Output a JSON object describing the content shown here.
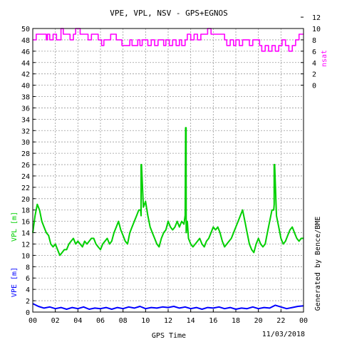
{
  "chart_data": {
    "type": "line",
    "title": "VPE, VPL, NSV - GPS+EGNOS",
    "xlabel": "GPS Time",
    "date": "11/03/2018",
    "side_credit": "Generated by Bence/BME",
    "grid": true,
    "left_axis": {
      "range": [
        0,
        50
      ],
      "ticks": [
        "0",
        "2",
        "4",
        "6",
        "8",
        "10",
        "12",
        "14",
        "16",
        "18",
        "20",
        "22",
        "24",
        "26",
        "28",
        "30",
        "32",
        "34",
        "36",
        "38",
        "40",
        "42",
        "44",
        "46",
        "48",
        "50"
      ],
      "labels": [
        {
          "text": "VPL [m]",
          "color": "#00d000"
        },
        {
          "text": "VPE [m]",
          "color": "#0000ff"
        }
      ]
    },
    "right_axis": {
      "label": "nsat",
      "label_color": "#ff00ff",
      "ticks": [
        "0",
        "2",
        "4",
        "6",
        "8",
        "10",
        "12"
      ]
    },
    "x_axis": {
      "range_hours": [
        0,
        24
      ],
      "ticks": [
        "00",
        "02",
        "04",
        "06",
        "08",
        "10",
        "12",
        "14",
        "16",
        "18",
        "20",
        "22",
        "00"
      ]
    },
    "series": [
      {
        "key": "nsat",
        "color": "#ff00ff",
        "axis": "right",
        "step": true,
        "points": [
          [
            0,
            8
          ],
          [
            0.3,
            9
          ],
          [
            1.0,
            9
          ],
          [
            1.2,
            8
          ],
          [
            1.3,
            9
          ],
          [
            1.5,
            8
          ],
          [
            1.8,
            9
          ],
          [
            2.1,
            8
          ],
          [
            2.5,
            10
          ],
          [
            2.7,
            9
          ],
          [
            3.0,
            9
          ],
          [
            3.3,
            8
          ],
          [
            3.6,
            9
          ],
          [
            3.8,
            10
          ],
          [
            4.1,
            10
          ],
          [
            4.2,
            9
          ],
          [
            4.6,
            9
          ],
          [
            4.9,
            8
          ],
          [
            5.2,
            9
          ],
          [
            5.6,
            9
          ],
          [
            5.8,
            8
          ],
          [
            6.1,
            7
          ],
          [
            6.3,
            8
          ],
          [
            6.6,
            8
          ],
          [
            6.9,
            9
          ],
          [
            7.2,
            9
          ],
          [
            7.4,
            8
          ],
          [
            7.7,
            8
          ],
          [
            7.9,
            7
          ],
          [
            8.3,
            7
          ],
          [
            8.6,
            8
          ],
          [
            8.8,
            7
          ],
          [
            9.1,
            7
          ],
          [
            9.3,
            8
          ],
          [
            9.5,
            7
          ],
          [
            9.7,
            8
          ],
          [
            9.9,
            8
          ],
          [
            10.2,
            7
          ],
          [
            10.5,
            8
          ],
          [
            10.8,
            7
          ],
          [
            11.1,
            8
          ],
          [
            11.4,
            8
          ],
          [
            11.6,
            7
          ],
          [
            11.8,
            8
          ],
          [
            12.1,
            7
          ],
          [
            12.4,
            8
          ],
          [
            12.7,
            7
          ],
          [
            13.0,
            8
          ],
          [
            13.2,
            7
          ],
          [
            13.5,
            8
          ],
          [
            13.7,
            9
          ],
          [
            14.0,
            8
          ],
          [
            14.3,
            9
          ],
          [
            14.6,
            8
          ],
          [
            14.9,
            9
          ],
          [
            15.2,
            9
          ],
          [
            15.5,
            10
          ],
          [
            15.8,
            9
          ],
          [
            16.1,
            9
          ],
          [
            16.4,
            9
          ],
          [
            16.7,
            9
          ],
          [
            17.0,
            8
          ],
          [
            17.2,
            7
          ],
          [
            17.5,
            8
          ],
          [
            17.8,
            7
          ],
          [
            18.0,
            8
          ],
          [
            18.3,
            7
          ],
          [
            18.6,
            8
          ],
          [
            18.9,
            8
          ],
          [
            19.2,
            7
          ],
          [
            19.5,
            8
          ],
          [
            19.8,
            8
          ],
          [
            20.1,
            7
          ],
          [
            20.3,
            6
          ],
          [
            20.6,
            7
          ],
          [
            20.9,
            6
          ],
          [
            21.2,
            7
          ],
          [
            21.5,
            6
          ],
          [
            21.8,
            7
          ],
          [
            22.1,
            8
          ],
          [
            22.4,
            7
          ],
          [
            22.7,
            6
          ],
          [
            23.0,
            7
          ],
          [
            23.3,
            8
          ],
          [
            23.6,
            9
          ],
          [
            24.0,
            9
          ]
        ]
      },
      {
        "key": "vpl",
        "color": "#00d000",
        "axis": "left",
        "points": [
          [
            0,
            14
          ],
          [
            0.2,
            17
          ],
          [
            0.4,
            19
          ],
          [
            0.6,
            18
          ],
          [
            0.8,
            16
          ],
          [
            1.0,
            15
          ],
          [
            1.2,
            14
          ],
          [
            1.4,
            13.5
          ],
          [
            1.6,
            12
          ],
          [
            1.8,
            11.5
          ],
          [
            2.0,
            12
          ],
          [
            2.2,
            11
          ],
          [
            2.4,
            10
          ],
          [
            2.6,
            10.5
          ],
          [
            2.8,
            11
          ],
          [
            3.0,
            11
          ],
          [
            3.2,
            12
          ],
          [
            3.4,
            12.5
          ],
          [
            3.6,
            13
          ],
          [
            3.8,
            12
          ],
          [
            4.0,
            12.5
          ],
          [
            4.2,
            12
          ],
          [
            4.4,
            11.5
          ],
          [
            4.6,
            12.5
          ],
          [
            4.8,
            12
          ],
          [
            5.0,
            12.5
          ],
          [
            5.2,
            13
          ],
          [
            5.4,
            13
          ],
          [
            5.6,
            12
          ],
          [
            5.8,
            11.5
          ],
          [
            6.0,
            11
          ],
          [
            6.2,
            12
          ],
          [
            6.4,
            12.5
          ],
          [
            6.6,
            13
          ],
          [
            6.8,
            12
          ],
          [
            7.0,
            12.5
          ],
          [
            7.2,
            14
          ],
          [
            7.4,
            15
          ],
          [
            7.6,
            16
          ],
          [
            7.8,
            14.5
          ],
          [
            8.0,
            13.5
          ],
          [
            8.2,
            12.5
          ],
          [
            8.4,
            12
          ],
          [
            8.6,
            14
          ],
          [
            8.8,
            15
          ],
          [
            9.0,
            16
          ],
          [
            9.2,
            17
          ],
          [
            9.4,
            18
          ],
          [
            9.6,
            17
          ],
          [
            9.8,
            18.5
          ],
          [
            10.0,
            19.5
          ],
          [
            10.2,
            17
          ],
          [
            10.4,
            15
          ],
          [
            10.6,
            14
          ],
          [
            10.8,
            13
          ],
          [
            11.0,
            12
          ],
          [
            11.2,
            11.5
          ],
          [
            11.4,
            13
          ],
          [
            11.6,
            14
          ],
          [
            11.8,
            14.5
          ],
          [
            12.0,
            16
          ],
          [
            12.2,
            15
          ],
          [
            12.4,
            14.5
          ],
          [
            12.6,
            15
          ],
          [
            12.8,
            16
          ],
          [
            13.0,
            15
          ],
          [
            13.2,
            16
          ],
          [
            13.4,
            15.5
          ],
          [
            13.5,
            17
          ],
          [
            13.6,
            14
          ],
          [
            13.7,
            16
          ],
          [
            13.8,
            13
          ],
          [
            14.0,
            12
          ],
          [
            14.2,
            11.5
          ],
          [
            14.4,
            12
          ],
          [
            14.6,
            12.5
          ],
          [
            14.8,
            13
          ],
          [
            15.0,
            12
          ],
          [
            15.2,
            11.5
          ],
          [
            15.4,
            12.5
          ],
          [
            15.6,
            13
          ],
          [
            15.8,
            14
          ],
          [
            16.0,
            15
          ],
          [
            16.2,
            14.5
          ],
          [
            16.4,
            15
          ],
          [
            16.6,
            14
          ],
          [
            16.8,
            12.5
          ],
          [
            17.0,
            11.5
          ],
          [
            17.2,
            12
          ],
          [
            17.4,
            12.5
          ],
          [
            17.6,
            13
          ],
          [
            17.8,
            14
          ],
          [
            18.0,
            15
          ],
          [
            18.2,
            16
          ],
          [
            18.4,
            17
          ],
          [
            18.6,
            18
          ],
          [
            18.8,
            16
          ],
          [
            19.0,
            14
          ],
          [
            19.2,
            12
          ],
          [
            19.4,
            11
          ],
          [
            19.6,
            10.5
          ],
          [
            19.8,
            12
          ],
          [
            20.0,
            13
          ],
          [
            20.2,
            12
          ],
          [
            20.4,
            11.5
          ],
          [
            20.6,
            12
          ],
          [
            20.8,
            14
          ],
          [
            21.0,
            16
          ],
          [
            21.2,
            18
          ],
          [
            21.4,
            19
          ],
          [
            21.6,
            17
          ],
          [
            21.8,
            15
          ],
          [
            22.0,
            13
          ],
          [
            22.2,
            12
          ],
          [
            22.4,
            12.5
          ],
          [
            22.6,
            13.5
          ],
          [
            22.8,
            14.5
          ],
          [
            23.0,
            15
          ],
          [
            23.2,
            14
          ],
          [
            23.4,
            13
          ],
          [
            23.6,
            12.5
          ],
          [
            23.8,
            13
          ],
          [
            24.0,
            13
          ]
        ]
      },
      {
        "key": "vpe",
        "color": "#0000ff",
        "axis": "left",
        "points": [
          [
            0,
            1.5
          ],
          [
            0.5,
            1.0
          ],
          [
            1.0,
            0.7
          ],
          [
            1.5,
            0.9
          ],
          [
            2.0,
            0.6
          ],
          [
            2.5,
            0.8
          ],
          [
            3.0,
            0.5
          ],
          [
            3.5,
            0.8
          ],
          [
            4.0,
            0.6
          ],
          [
            4.5,
            0.9
          ],
          [
            5.0,
            0.5
          ],
          [
            5.5,
            0.7
          ],
          [
            6.0,
            0.6
          ],
          [
            6.5,
            0.8
          ],
          [
            7.0,
            0.5
          ],
          [
            7.5,
            0.8
          ],
          [
            8.0,
            0.6
          ],
          [
            8.5,
            0.9
          ],
          [
            9.0,
            0.7
          ],
          [
            9.5,
            1.0
          ],
          [
            10.0,
            0.6
          ],
          [
            10.5,
            0.8
          ],
          [
            11.0,
            0.7
          ],
          [
            11.5,
            0.9
          ],
          [
            12.0,
            0.8
          ],
          [
            12.5,
            1.0
          ],
          [
            13.0,
            0.7
          ],
          [
            13.5,
            0.9
          ],
          [
            14.0,
            0.6
          ],
          [
            14.5,
            0.8
          ],
          [
            15.0,
            0.5
          ],
          [
            15.5,
            0.8
          ],
          [
            16.0,
            0.7
          ],
          [
            16.5,
            0.9
          ],
          [
            17.0,
            0.6
          ],
          [
            17.5,
            0.8
          ],
          [
            18.0,
            0.5
          ],
          [
            18.5,
            0.7
          ],
          [
            19.0,
            0.6
          ],
          [
            19.5,
            0.9
          ],
          [
            20.0,
            0.6
          ],
          [
            20.5,
            0.8
          ],
          [
            21.0,
            0.7
          ],
          [
            21.5,
            1.2
          ],
          [
            22.0,
            0.9
          ],
          [
            22.5,
            0.6
          ],
          [
            23.0,
            0.8
          ],
          [
            23.5,
            1.0
          ],
          [
            24.0,
            1.1
          ]
        ]
      }
    ],
    "spikes": [
      {
        "series": "vpl",
        "x_hours": 9.6,
        "y": 26
      },
      {
        "series": "vpl",
        "x_hours": 13.55,
        "y": 32.5
      },
      {
        "series": "vpl",
        "x_hours": 21.4,
        "y": 26
      }
    ]
  }
}
